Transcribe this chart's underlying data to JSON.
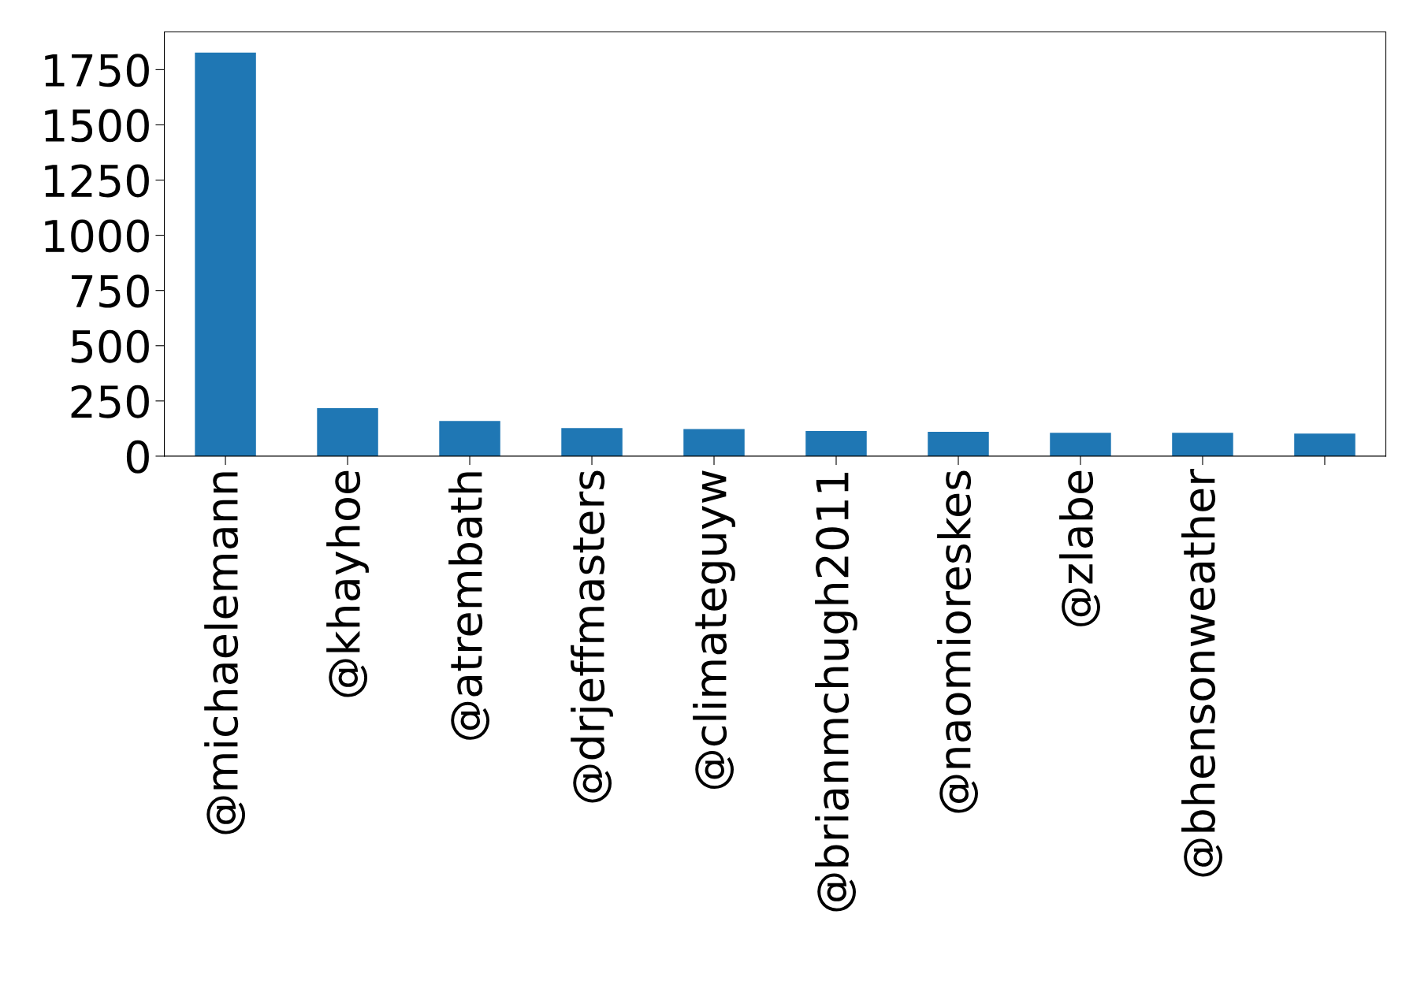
{
  "chart_data": {
    "type": "bar",
    "categories": [
      "@michaelemann",
      "@khayhoe",
      "@atrembath",
      "@drjeffmasters",
      "@climateguyw",
      "@brianmchugh2011",
      "@naomioreskes",
      "@zlabe",
      "@bhensonweather",
      null
    ],
    "values": [
      1827,
      217,
      159,
      127,
      123,
      114,
      110,
      106,
      106,
      102
    ],
    "color": "#1f77b4",
    "ylim": [
      0,
      1921
    ],
    "yticks": [
      0,
      250,
      500,
      750,
      1000,
      1250,
      1500,
      1750
    ],
    "grid": false,
    "legend": false
  }
}
